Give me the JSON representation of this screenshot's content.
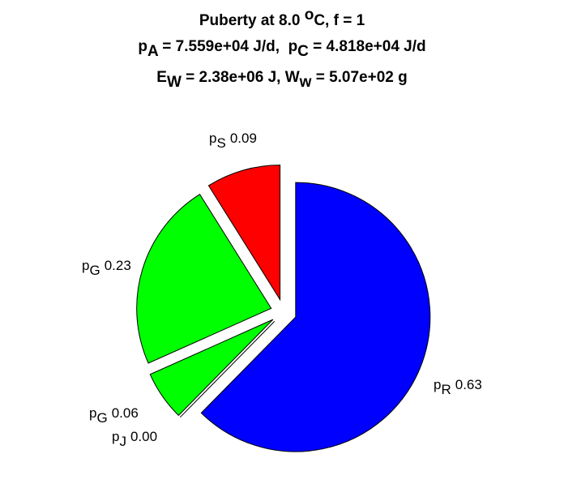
{
  "chart_data": {
    "type": "pie",
    "title": [
      [
        {
          "text": "Puberty at 8.0 "
        },
        {
          "text": "o",
          "shift": "sup"
        },
        {
          "text": "C, f = 1"
        }
      ],
      [
        {
          "text": "p"
        },
        {
          "text": "A",
          "shift": "sub"
        },
        {
          "text": " = 7.559e+04 J/d,  p"
        },
        {
          "text": "C",
          "shift": "sub"
        },
        {
          "text": " = 4.818e+04 J/d"
        }
      ],
      [
        {
          "text": "E"
        },
        {
          "text": "W",
          "shift": "sub"
        },
        {
          "text": " = 2.38e+06 J, W"
        },
        {
          "text": "w",
          "shift": "sub"
        },
        {
          "text": " = 5.07e+02 g"
        }
      ]
    ],
    "categories": [
      [
        {
          "text": "p"
        },
        {
          "text": "S",
          "shift": "sub"
        }
      ],
      [
        {
          "text": "p"
        },
        {
          "text": "G",
          "shift": "sub"
        }
      ],
      [
        {
          "text": "p"
        },
        {
          "text": "G",
          "shift": "sub"
        }
      ],
      [
        {
          "text": "p"
        },
        {
          "text": "J",
          "shift": "sub"
        }
      ],
      [
        {
          "text": "p"
        },
        {
          "text": "R",
          "shift": "sub"
        }
      ]
    ],
    "values": [
      0.09,
      0.23,
      0.06,
      0,
      0.63
    ],
    "value_labels": [
      "0.09",
      "0.23",
      "0.06",
      "0.00",
      "0.63"
    ],
    "colors": [
      "#ff0000",
      "#00ff00",
      "#00ff00",
      "#ff00ff",
      "#0000ff"
    ],
    "explode": true
  }
}
